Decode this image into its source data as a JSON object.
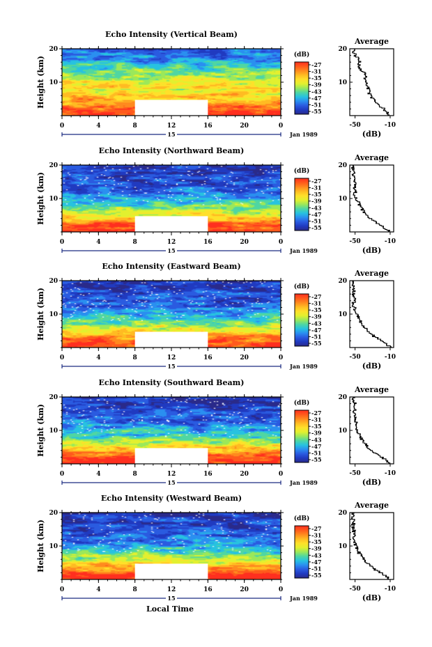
{
  "chart_data": {
    "type": "heatmap",
    "x_axis": {
      "label": "Local Time",
      "range": [
        0,
        24
      ],
      "ticks": [
        "0",
        "4",
        "8",
        "12",
        "16",
        "20",
        "0"
      ],
      "date_label": "Jan 1989",
      "day_label": "15"
    },
    "y_axis": {
      "label": "Height (km)",
      "range": [
        0,
        20
      ],
      "ticks": [
        "20",
        "10"
      ]
    },
    "colorbar": {
      "unit_label": "(dB)",
      "ticks": [
        "-27",
        "-31",
        "-35",
        "-39",
        "-43",
        "-47",
        "-51",
        "-55"
      ],
      "colors": [
        "#ff2f1f",
        "#ff5a1c",
        "#ff8a1e",
        "#ffbb22",
        "#ffe02a",
        "#e2f02f",
        "#9be85a",
        "#4fd6a2",
        "#27c2e0",
        "#2a8ff0",
        "#2a5be0",
        "#203ac0",
        "#2a2a8a"
      ]
    },
    "data_gap": {
      "x_range": [
        8,
        16
      ],
      "height_max_km": 4.5
    },
    "average_panel": {
      "title": "Average",
      "xlabel": "(dB)",
      "x_ticks": [
        "-50",
        "-10"
      ],
      "x_range": [
        -56,
        -6
      ],
      "y_ticks": [
        "20",
        "10"
      ]
    },
    "panels": [
      {
        "title": "Echo Intensity (Vertical Beam)",
        "average_profile": [
          [
            0,
            -11
          ],
          [
            1,
            -14
          ],
          [
            2,
            -18
          ],
          [
            3,
            -22
          ],
          [
            4,
            -27
          ],
          [
            5,
            -30
          ],
          [
            6,
            -33
          ],
          [
            7,
            -34
          ],
          [
            8,
            -35
          ],
          [
            9,
            -37
          ],
          [
            10,
            -39
          ],
          [
            11,
            -38
          ],
          [
            12,
            -38
          ],
          [
            13,
            -41
          ],
          [
            14,
            -44
          ],
          [
            15,
            -46
          ],
          [
            16,
            -45
          ],
          [
            17,
            -47
          ],
          [
            18,
            -50
          ],
          [
            19,
            -52
          ],
          [
            20,
            -51
          ]
        ]
      },
      {
        "title": "Echo Intensity (Northward Beam)",
        "average_profile": [
          [
            0,
            -11
          ],
          [
            1,
            -16
          ],
          [
            2,
            -22
          ],
          [
            3,
            -28
          ],
          [
            4,
            -33
          ],
          [
            5,
            -37
          ],
          [
            6,
            -40
          ],
          [
            7,
            -43
          ],
          [
            8,
            -45
          ],
          [
            9,
            -47
          ],
          [
            10,
            -49
          ],
          [
            11,
            -50
          ],
          [
            12,
            -50
          ],
          [
            13,
            -51
          ],
          [
            14,
            -50
          ],
          [
            15,
            -51
          ],
          [
            16,
            -51
          ],
          [
            17,
            -52
          ],
          [
            18,
            -50
          ],
          [
            19,
            -53
          ],
          [
            20,
            -52
          ]
        ]
      },
      {
        "title": "Echo Intensity (Eastward Beam)",
        "average_profile": [
          [
            0,
            -10
          ],
          [
            1,
            -15
          ],
          [
            2,
            -21
          ],
          [
            3,
            -27
          ],
          [
            4,
            -32
          ],
          [
            5,
            -36
          ],
          [
            6,
            -40
          ],
          [
            7,
            -43
          ],
          [
            8,
            -45
          ],
          [
            9,
            -47
          ],
          [
            10,
            -49
          ],
          [
            11,
            -50
          ],
          [
            12,
            -51
          ],
          [
            13,
            -52
          ],
          [
            14,
            -50
          ],
          [
            15,
            -51
          ],
          [
            16,
            -52
          ],
          [
            17,
            -51
          ],
          [
            18,
            -52
          ],
          [
            19,
            -53
          ],
          [
            20,
            -52
          ]
        ]
      },
      {
        "title": "Echo Intensity (Southward Beam)",
        "average_profile": [
          [
            0,
            -10
          ],
          [
            1,
            -15
          ],
          [
            2,
            -21
          ],
          [
            3,
            -27
          ],
          [
            4,
            -32
          ],
          [
            5,
            -36
          ],
          [
            6,
            -39
          ],
          [
            7,
            -42
          ],
          [
            8,
            -44
          ],
          [
            9,
            -46
          ],
          [
            10,
            -47
          ],
          [
            11,
            -48
          ],
          [
            12,
            -49
          ],
          [
            13,
            -50
          ],
          [
            14,
            -50
          ],
          [
            15,
            -51
          ],
          [
            16,
            -50
          ],
          [
            17,
            -52
          ],
          [
            18,
            -50
          ],
          [
            19,
            -53
          ],
          [
            20,
            -51
          ]
        ]
      },
      {
        "title": "Echo Intensity (Westward Beam)",
        "average_profile": [
          [
            0,
            -11
          ],
          [
            1,
            -16
          ],
          [
            2,
            -22
          ],
          [
            3,
            -28
          ],
          [
            4,
            -33
          ],
          [
            5,
            -37
          ],
          [
            6,
            -40
          ],
          [
            7,
            -43
          ],
          [
            8,
            -46
          ],
          [
            9,
            -47
          ],
          [
            10,
            -49
          ],
          [
            11,
            -50
          ],
          [
            12,
            -51
          ],
          [
            13,
            -51
          ],
          [
            14,
            -52
          ],
          [
            15,
            -51
          ],
          [
            16,
            -53
          ],
          [
            17,
            -51
          ],
          [
            18,
            -52
          ],
          [
            19,
            -53
          ],
          [
            20,
            -52
          ]
        ]
      }
    ]
  }
}
